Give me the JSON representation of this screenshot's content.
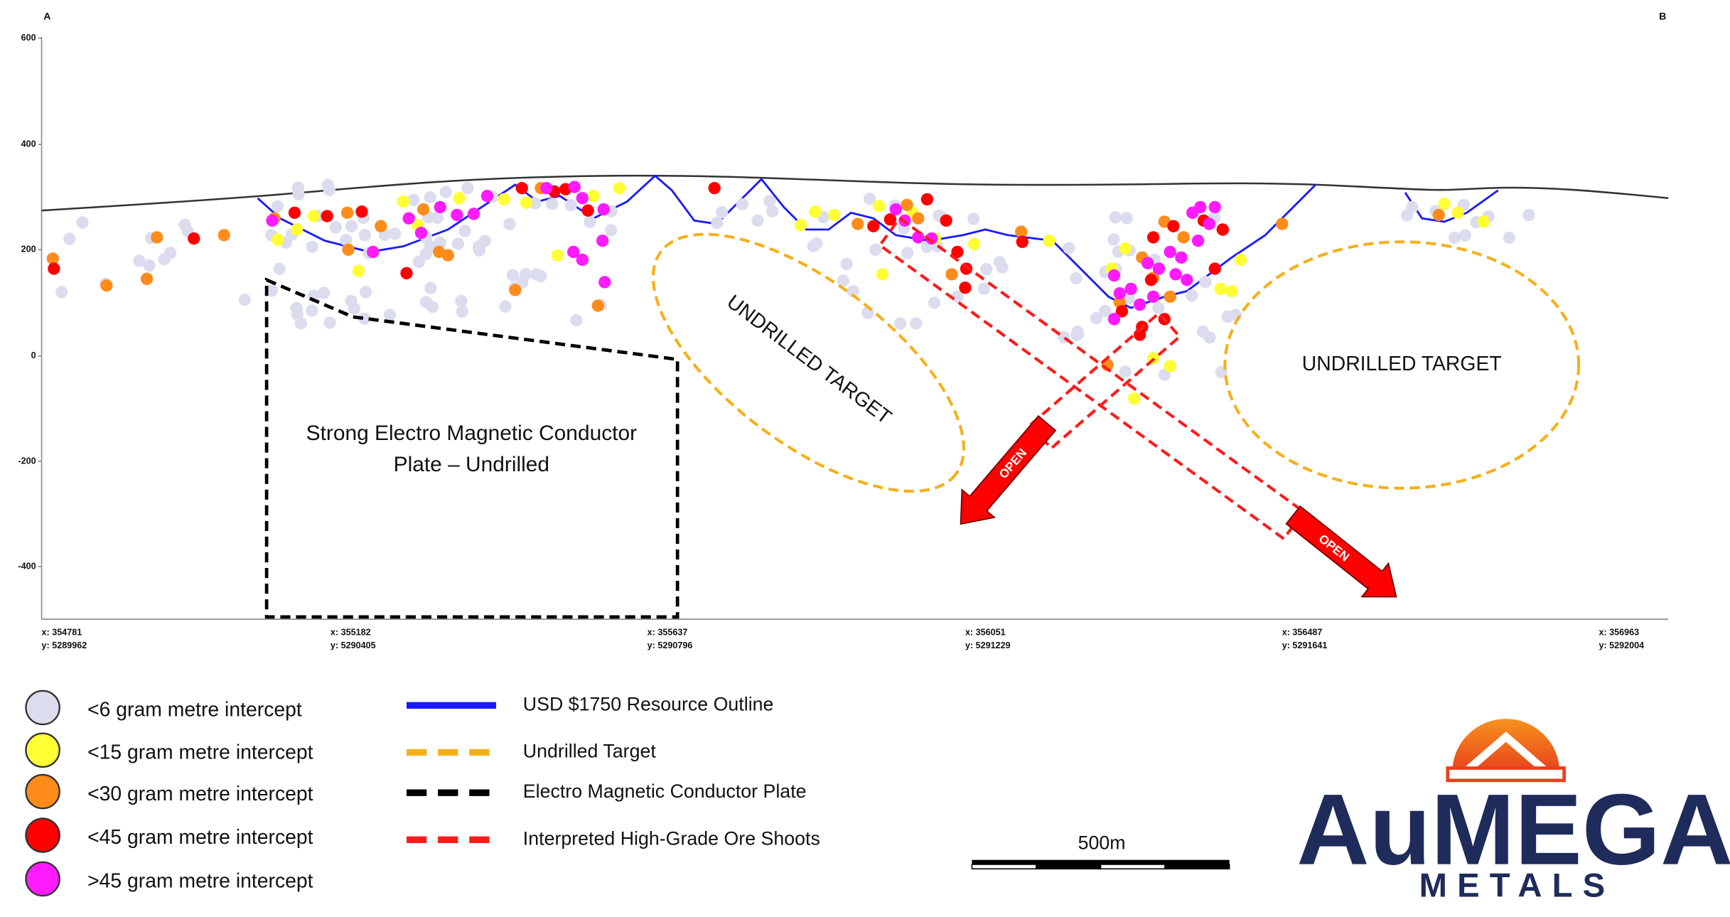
{
  "header": {
    "left_label": "A",
    "right_label": "B"
  },
  "axis": {
    "y_ticks": [
      "600",
      "400",
      "200",
      "0",
      "-200",
      "-400"
    ],
    "x_ticks": [
      {
        "x": "x: 354781",
        "y": "y: 5289962"
      },
      {
        "x": "x: 355182",
        "y": "y: 5290405"
      },
      {
        "x": "x: 355637",
        "y": "y: 5290796"
      },
      {
        "x": "x: 356051",
        "y": "y: 5291229"
      },
      {
        "x": "x: 356487",
        "y": "y: 5291641"
      },
      {
        "x": "x: 356963",
        "y": "y: 5292004"
      }
    ]
  },
  "annotations": {
    "conductor": [
      "Strong Electro Magnetic Conductor",
      "Plate – Undrilled"
    ],
    "targets": [
      "UNDRILLED TARGET",
      "UNDRILLED TARGET"
    ],
    "open": [
      "OPEN",
      "OPEN"
    ]
  },
  "legend": {
    "intercepts": [
      "<6 gram metre intercept",
      "<15 gram metre intercept",
      "<30 gram metre intercept",
      "<45 gram metre intercept",
      ">45 gram metre intercept"
    ],
    "lines": [
      "USD $1750 Resource Outline",
      "Undrilled Target",
      "Electro Magnetic Conductor Plate",
      "Interpreted High-Grade Ore Shoots"
    ]
  },
  "scale_bar": "500m",
  "logo": {
    "name": "AuMEGA",
    "sub": "METALS"
  }
}
